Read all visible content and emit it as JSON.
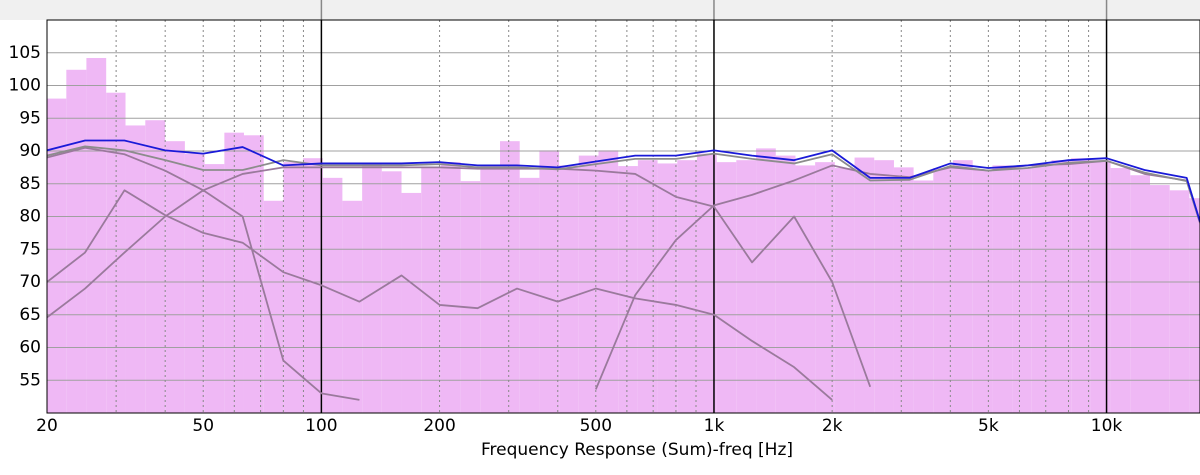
{
  "chart_data": {
    "type": "line",
    "xlabel": "Frequency Response (Sum)-freq [Hz]",
    "xscale": "log",
    "grid": true,
    "xlim": [
      20,
      17300
    ],
    "ylim": [
      50,
      110
    ],
    "yticks": [
      55,
      60,
      65,
      70,
      75,
      80,
      85,
      90,
      95,
      100,
      105
    ],
    "xticks": [
      20,
      50,
      100,
      200,
      500,
      {
        "value": 1000,
        "label": "1k"
      },
      {
        "value": 2000,
        "label": "2k"
      },
      {
        "value": 5000,
        "label": "5k"
      },
      {
        "value": 10000,
        "label": "10k"
      }
    ],
    "xminor": [
      30,
      40,
      60,
      70,
      80,
      90,
      300,
      400,
      600,
      700,
      800,
      900,
      3000,
      4000,
      6000,
      7000,
      8000,
      9000
    ],
    "histogram": {
      "color": "#efb8f5",
      "bins": [
        20,
        22.4,
        25.2,
        28.3,
        31.7,
        35.6,
        40,
        44.9,
        50.4,
        56.6,
        63.5,
        71.3,
        80,
        89.8,
        100.8,
        113.1,
        127,
        142.5,
        160,
        179.6,
        201.6,
        226.3,
        254,
        285.1,
        320,
        359.2,
        403.2,
        452.5,
        508,
        570.2,
        640,
        718.4,
        806.3,
        905,
        1016,
        1140,
        1280,
        1437,
        1613,
        1810,
        2032,
        2281,
        2560,
        2874,
        3225,
        3620,
        4064,
        4561,
        5120,
        5747,
        6451,
        7241,
        8127,
        9123,
        10240,
        11494,
        12902,
        14482,
        16255,
        18245
      ],
      "counts": [
        98,
        102.4,
        104.2,
        98.9,
        93.9,
        94.7,
        91.5,
        89.6,
        88,
        92.8,
        92.4,
        82.4,
        88.3,
        88.9,
        85.9,
        82.4,
        88,
        86.9,
        83.6,
        87.4,
        88.3,
        85.4,
        87.8,
        91.5,
        85.9,
        90.1,
        87.8,
        89.3,
        90.1,
        87.7,
        88.6,
        88.1,
        88.6,
        89.6,
        88.3,
        88.6,
        90.4,
        89.3,
        87.8,
        88.3,
        87.4,
        89,
        88.6,
        87.5,
        85.5,
        87.4,
        88.6,
        87.1,
        87.8,
        87.4,
        87.8,
        88.6,
        88.9,
        88.6,
        87.4,
        86.3,
        84.8,
        84,
        82.8
      ]
    },
    "x": [
      20,
      25,
      31.5,
      40,
      50,
      63,
      80,
      100,
      125,
      160,
      200,
      250,
      315,
      400,
      500,
      630,
      800,
      1000,
      1250,
      1600,
      2000,
      2500,
      3150,
      4000,
      5000,
      6300,
      8000,
      10000,
      12500,
      16000,
      17300
    ],
    "series": [
      {
        "color": "#9a7a9c",
        "values": [
          64.6,
          69,
          74.5,
          80,
          84,
          86.5,
          87.5,
          87.5,
          87.5,
          87.5,
          87.5,
          87.3,
          87.3,
          87.3,
          87,
          86.5,
          83,
          81.5,
          73,
          80,
          70,
          54,
          null,
          null,
          null,
          null,
          null,
          null,
          null,
          null,
          null
        ]
      },
      {
        "color": "#9a7a9c",
        "values": [
          70,
          74.5,
          84,
          80.2,
          77.5,
          76,
          71.5,
          69.5,
          67,
          71,
          66.5,
          66,
          69,
          67,
          69,
          67.5,
          66.5,
          65,
          61,
          57,
          52,
          null,
          null,
          null,
          null,
          null,
          null,
          null,
          null,
          null,
          null
        ]
      },
      {
        "color": "#9a7a9c",
        "values": [
          89,
          90.5,
          89.5,
          87,
          84,
          80,
          58,
          53,
          52,
          null,
          null,
          null,
          null,
          null,
          null,
          null,
          null,
          null,
          null,
          null,
          null,
          null,
          null,
          null,
          null,
          null,
          null,
          null,
          null,
          null,
          null
        ]
      },
      {
        "color": "#9a7a9c",
        "values": [
          null,
          null,
          null,
          null,
          null,
          null,
          null,
          null,
          null,
          null,
          null,
          null,
          null,
          null,
          53.6,
          68,
          76.4,
          81.7,
          83.3,
          85.5,
          87.8,
          86.5,
          86,
          87.5,
          87,
          87.8,
          88,
          88.5,
          86.5,
          85.5,
          79
        ]
      },
      {
        "color": "#8c8c8c",
        "values": [
          89.3,
          90.7,
          90.1,
          88.6,
          87.1,
          87.1,
          88.6,
          87.8,
          87.8,
          87.8,
          88,
          87.5,
          87.5,
          87.2,
          88,
          88.8,
          88.8,
          89.6,
          88.8,
          88.1,
          89.5,
          85.5,
          85.6,
          87.7,
          87,
          87.4,
          88.2,
          88.5,
          86.7,
          85.4,
          79.2
        ]
      },
      {
        "color": "#1a1ad8",
        "values": [
          90.1,
          91.6,
          91.6,
          90.1,
          89.6,
          90.6,
          87.8,
          88.1,
          88.1,
          88.1,
          88.3,
          87.8,
          87.8,
          87.5,
          88.4,
          89.3,
          89.3,
          90.1,
          89.3,
          88.6,
          90.1,
          85.9,
          85.9,
          88.1,
          87.4,
          87.8,
          88.6,
          88.9,
          87.1,
          85.9,
          79.2
        ]
      }
    ]
  }
}
